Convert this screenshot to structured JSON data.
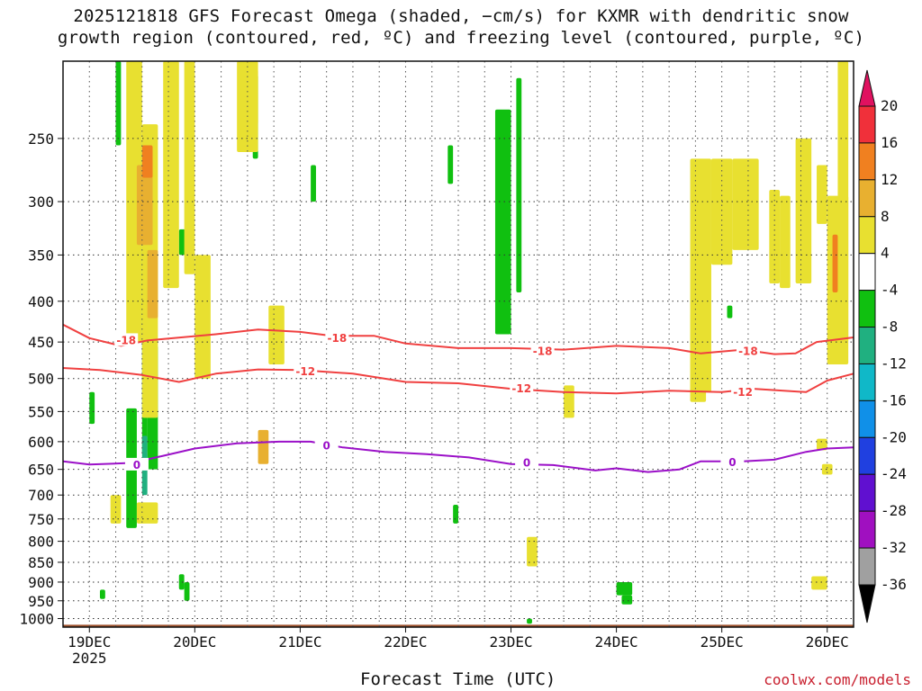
{
  "title_line1": "2025121818 GFS Forecast Omega (shaded, −cm/s) for KXMR with dendritic snow",
  "title_line2": "growth region (contoured, red, ºC) and freezing level (contoured, purple, ºC)",
  "x_axis_label": "Forecast Time (UTC)",
  "credit": "coolwx.com/models",
  "chart_data": {
    "type": "heatmap",
    "title": "2025121818 GFS Forecast Omega (shaded, −cm/s) for KXMR with dendritic snow growth region (contoured, red, ºC) and freezing level (contoured, purple, ºC)",
    "xlabel": "Forecast Time (UTC)",
    "ylabel": "",
    "x_ticks": [
      {
        "label": "19DEC",
        "sublabel": "2025",
        "day": 19
      },
      {
        "label": "20DEC",
        "day": 20
      },
      {
        "label": "21DEC",
        "day": 21
      },
      {
        "label": "22DEC",
        "day": 22
      },
      {
        "label": "23DEC",
        "day": 23
      },
      {
        "label": "24DEC",
        "day": 24
      },
      {
        "label": "25DEC",
        "day": 25
      },
      {
        "label": "26DEC",
        "day": 26
      }
    ],
    "xlim_days": [
      18.75,
      26.25
    ],
    "y_ticks_hPa": [
      250,
      300,
      350,
      400,
      450,
      500,
      550,
      600,
      650,
      700,
      750,
      800,
      850,
      900,
      950,
      1000
    ],
    "ylim_hPa": [
      1025,
      200
    ],
    "y_inverted": true,
    "grid": true,
    "colorbar": {
      "labels": [
        20,
        16,
        12,
        8,
        4,
        -4,
        -8,
        -12,
        -16,
        -20,
        -24,
        -28,
        -32,
        -36
      ],
      "colors": [
        "#e0115f",
        "#f0303a",
        "#f08020",
        "#e8b030",
        "#e8e030",
        "#ffffff",
        "#10c010",
        "#20b080",
        "#10b8c8",
        "#1090e8",
        "#2040e0",
        "#6010d0",
        "#a010c0",
        "#a0a0a0",
        "#000000"
      ]
    },
    "contours": [
      {
        "level": "-18",
        "color": "#f04040",
        "points": [
          [
            18.75,
            428
          ],
          [
            19.0,
            445
          ],
          [
            19.3,
            455
          ],
          [
            19.55,
            448
          ],
          [
            19.8,
            445
          ],
          [
            20.2,
            440
          ],
          [
            20.6,
            434
          ],
          [
            21.0,
            437
          ],
          [
            21.3,
            442
          ],
          [
            21.7,
            442
          ],
          [
            22.0,
            452
          ],
          [
            22.5,
            458
          ],
          [
            23.0,
            458
          ],
          [
            23.5,
            460
          ],
          [
            24.0,
            455
          ],
          [
            24.5,
            458
          ],
          [
            24.8,
            465
          ],
          [
            25.2,
            460
          ],
          [
            25.5,
            466
          ],
          [
            25.7,
            465
          ],
          [
            25.9,
            450
          ],
          [
            26.25,
            444
          ]
        ],
        "labels": [
          {
            "x": 19.35,
            "p": 448
          },
          {
            "x": 21.35,
            "p": 445
          },
          {
            "x": 23.3,
            "p": 462
          },
          {
            "x": 25.25,
            "p": 462
          }
        ]
      },
      {
        "level": "-12",
        "color": "#f04040",
        "points": [
          [
            18.75,
            485
          ],
          [
            19.1,
            488
          ],
          [
            19.5,
            495
          ],
          [
            19.85,
            505
          ],
          [
            20.2,
            493
          ],
          [
            20.6,
            487
          ],
          [
            21.0,
            488
          ],
          [
            21.5,
            493
          ],
          [
            22.0,
            505
          ],
          [
            22.5,
            507
          ],
          [
            23.0,
            515
          ],
          [
            23.5,
            520
          ],
          [
            24.0,
            522
          ],
          [
            24.5,
            518
          ],
          [
            25.0,
            520
          ],
          [
            25.3,
            515
          ],
          [
            25.8,
            520
          ],
          [
            26.0,
            503
          ],
          [
            26.25,
            493
          ]
        ],
        "labels": [
          {
            "x": 21.05,
            "p": 490
          },
          {
            "x": 23.1,
            "p": 515
          },
          {
            "x": 25.2,
            "p": 520
          }
        ]
      },
      {
        "level": "0",
        "color": "#9b10c8",
        "points": [
          [
            18.75,
            635
          ],
          [
            19.0,
            641
          ],
          [
            19.4,
            638
          ],
          [
            19.7,
            625
          ],
          [
            20.0,
            612
          ],
          [
            20.4,
            603
          ],
          [
            20.8,
            600
          ],
          [
            21.1,
            600
          ],
          [
            21.4,
            610
          ],
          [
            21.8,
            618
          ],
          [
            22.2,
            622
          ],
          [
            22.6,
            628
          ],
          [
            23.0,
            640
          ],
          [
            23.4,
            642
          ],
          [
            23.8,
            652
          ],
          [
            24.0,
            648
          ],
          [
            24.3,
            655
          ],
          [
            24.6,
            650
          ],
          [
            24.8,
            635
          ],
          [
            25.2,
            635
          ],
          [
            25.5,
            632
          ],
          [
            25.8,
            618
          ],
          [
            26.0,
            612
          ],
          [
            26.25,
            610
          ]
        ],
        "labels": [
          {
            "x": 19.45,
            "p": 642
          },
          {
            "x": 21.25,
            "p": 607
          },
          {
            "x": 23.15,
            "p": 638
          },
          {
            "x": 25.1,
            "p": 637
          }
        ]
      }
    ],
    "shaded_regions": [
      {
        "class": "-4 to -8",
        "color": "#10c010",
        "x": [
          [
            19.25,
            19.3
          ],
          [
            19.55,
            19.65
          ],
          [
            20.55,
            20.6
          ],
          [
            21.1,
            21.15
          ],
          [
            22.4,
            22.45
          ],
          [
            22.85,
            23.0
          ],
          [
            23.05,
            23.1
          ],
          [
            25.05,
            25.1
          ],
          [
            19.0,
            19.05
          ],
          [
            19.5,
            19.55
          ],
          [
            19.85,
            19.95
          ],
          [
            19.85,
            19.9
          ],
          [
            19.35,
            19.45
          ],
          [
            19.9,
            19.95
          ],
          [
            22.45,
            22.5
          ],
          [
            23.15,
            23.2
          ],
          [
            24.0,
            24.15
          ],
          [
            24.05,
            24.15
          ],
          [
            19.1,
            19.15
          ]
        ],
        "p": [
          [
            200,
            255
          ],
          [
            455,
            650
          ],
          [
            208,
            265
          ],
          [
            270,
            300
          ],
          [
            255,
            285
          ],
          [
            230,
            440
          ],
          [
            210,
            390
          ],
          [
            405,
            420
          ],
          [
            520,
            570
          ],
          [
            340,
            620
          ],
          [
            325,
            350
          ],
          [
            880,
            920
          ],
          [
            545,
            770
          ],
          [
            900,
            950
          ],
          [
            720,
            760
          ],
          [
            1000,
            1015
          ],
          [
            900,
            935
          ],
          [
            935,
            960
          ],
          [
            920,
            945
          ]
        ]
      },
      {
        "class": "-8 to -12",
        "color": "#20b080",
        "x": [
          [
            19.5,
            19.55
          ],
          [
            19.5,
            19.55
          ]
        ],
        "p": [
          [
            250,
            300
          ],
          [
            590,
            700
          ]
        ]
      },
      {
        "class": "4 to 8",
        "color": "#e8e030",
        "x": [
          [
            19.35,
            19.5
          ],
          [
            19.5,
            19.65
          ],
          [
            19.7,
            19.85
          ],
          [
            19.9,
            20.0
          ],
          [
            20.0,
            20.15
          ],
          [
            20.4,
            20.6
          ],
          [
            20.7,
            20.85
          ],
          [
            24.7,
            24.9
          ],
          [
            24.9,
            25.1
          ],
          [
            25.1,
            25.35
          ],
          [
            25.45,
            25.55
          ],
          [
            25.55,
            25.65
          ],
          [
            25.7,
            25.85
          ],
          [
            25.9,
            26.0
          ],
          [
            26.1,
            26.2
          ],
          [
            20.45,
            20.6
          ],
          [
            24.7,
            24.85
          ],
          [
            23.5,
            23.6
          ],
          [
            23.15,
            23.25
          ],
          [
            19.45,
            19.65
          ],
          [
            25.85,
            26.0
          ],
          [
            25.95,
            26.05
          ],
          [
            25.9,
            26.0
          ],
          [
            19.2,
            19.3
          ],
          [
            26.0,
            26.2
          ]
        ],
        "p": [
          [
            200,
            450
          ],
          [
            240,
            560
          ],
          [
            200,
            385
          ],
          [
            200,
            370
          ],
          [
            350,
            500
          ],
          [
            200,
            260
          ],
          [
            405,
            480
          ],
          [
            265,
            520
          ],
          [
            265,
            360
          ],
          [
            265,
            345
          ],
          [
            290,
            380
          ],
          [
            295,
            385
          ],
          [
            250,
            380
          ],
          [
            270,
            320
          ],
          [
            200,
            450
          ],
          [
            205,
            240
          ],
          [
            415,
            535
          ],
          [
            510,
            560
          ],
          [
            790,
            860
          ],
          [
            715,
            760
          ],
          [
            885,
            920
          ],
          [
            640,
            660
          ],
          [
            595,
            615
          ],
          [
            700,
            760
          ],
          [
            295,
            480
          ]
        ]
      },
      {
        "class": "8 to 12",
        "color": "#e8b030",
        "x": [
          [
            19.45,
            19.6
          ],
          [
            19.55,
            19.65
          ],
          [
            20.6,
            20.7
          ]
        ],
        "p": [
          [
            270,
            340
          ],
          [
            345,
            420
          ],
          [
            580,
            640
          ]
        ]
      },
      {
        "class": "12 to 16",
        "color": "#f08020",
        "x": [
          [
            19.5,
            19.6
          ],
          [
            26.05,
            26.1
          ]
        ],
        "p": [
          [
            255,
            280
          ],
          [
            330,
            390
          ]
        ]
      }
    ],
    "ground_fill": {
      "color": "#a0522d",
      "from_hPa": 1018,
      "to_hPa": 1025
    }
  }
}
